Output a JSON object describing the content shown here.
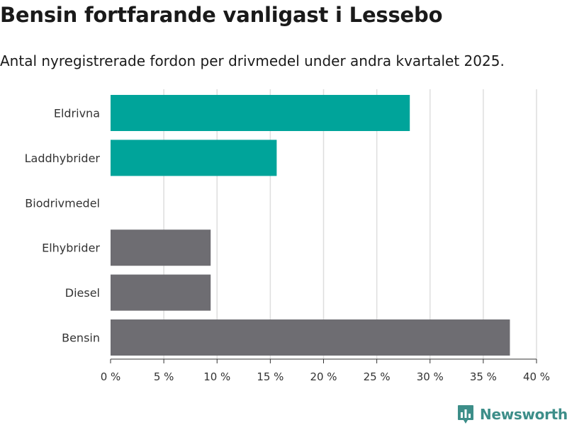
{
  "header": {
    "title": "Bensin fortfarande vanligast i Lessebo",
    "subtitle": "Antal nyregistrerade fordon per drivmedel under andra kvartalet 2025."
  },
  "chart_data": {
    "type": "bar",
    "orientation": "horizontal",
    "categories": [
      "Eldrivna",
      "Laddhybrider",
      "Biodrivmedel",
      "Elhybrider",
      "Diesel",
      "Bensin"
    ],
    "values": [
      28.1,
      15.6,
      0,
      9.4,
      9.4,
      37.5
    ],
    "bar_colors": [
      "#00a49a",
      "#00a49a",
      "#00a49a",
      "#6e6d72",
      "#6e6d72",
      "#6e6d72"
    ],
    "xlim": [
      0,
      40
    ],
    "xticks": [
      0,
      5,
      10,
      15,
      20,
      25,
      30,
      35,
      40
    ],
    "xtick_labels": [
      "0 %",
      "5 %",
      "10 %",
      "15 %",
      "20 %",
      "25 %",
      "30 %",
      "35 %",
      "40 %"
    ],
    "grid": "vertical",
    "xlabel": "",
    "ylabel": ""
  },
  "brand": {
    "name": "Newsworthy",
    "icon": "bar-chart-speech-bubble-icon",
    "color": "#3d8e89"
  }
}
